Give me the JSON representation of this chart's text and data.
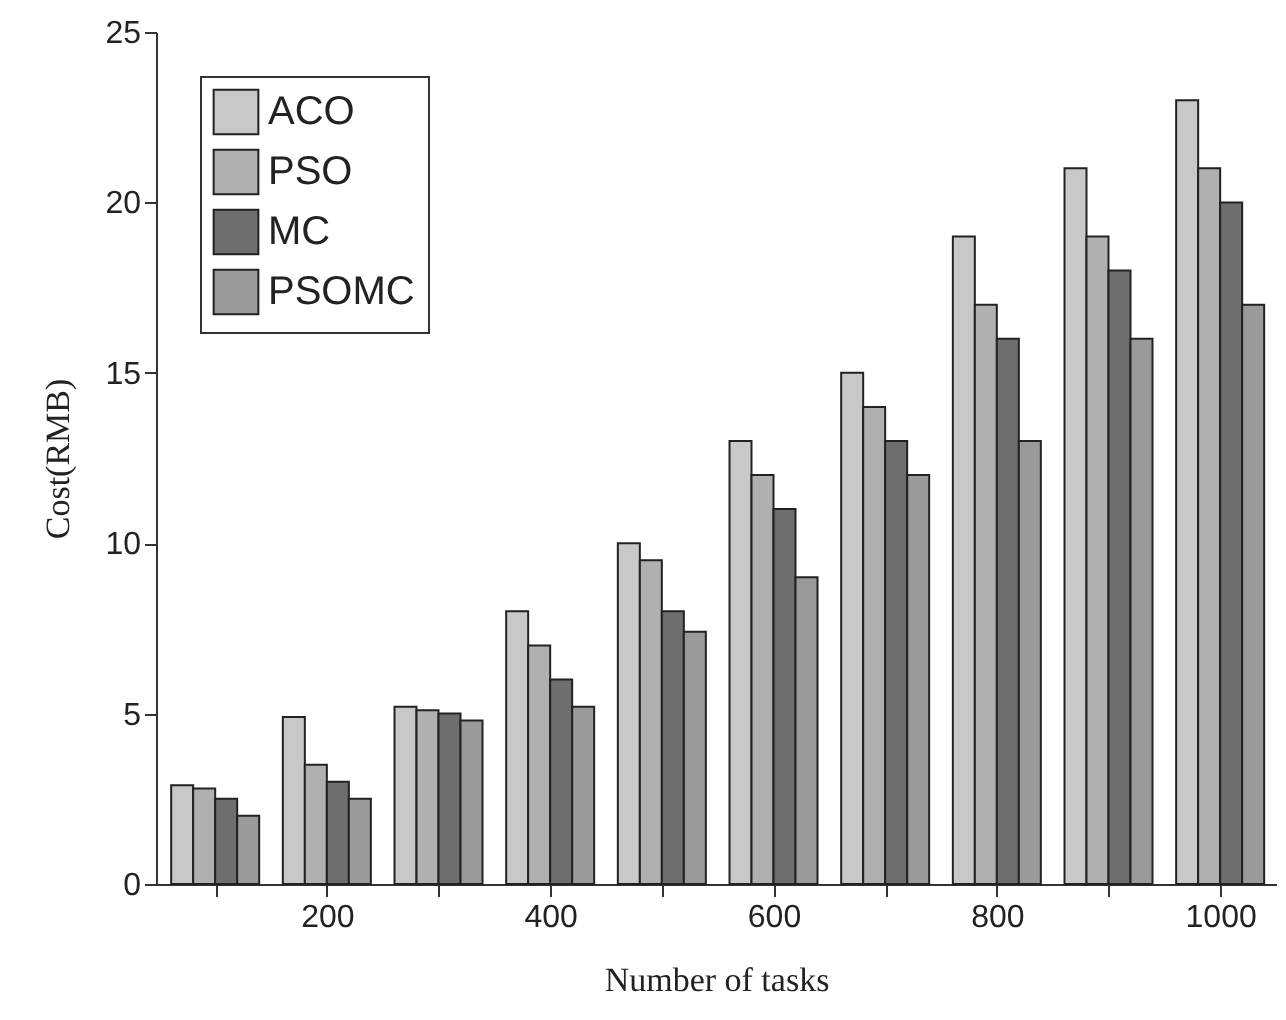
{
  "chart_data": {
    "type": "bar",
    "xlabel": "Number of tasks",
    "ylabel": "Cost(RMB)",
    "x": [
      100,
      200,
      300,
      400,
      500,
      600,
      700,
      800,
      900,
      1000
    ],
    "series": [
      {
        "name": "ACO",
        "color": "#c8c8c8",
        "values": [
          2.9,
          4.9,
          5.2,
          8,
          10,
          13,
          15,
          19,
          21,
          23
        ]
      },
      {
        "name": "PSO",
        "color": "#b0b0b0",
        "values": [
          2.8,
          3.5,
          5.1,
          7,
          9.5,
          12,
          14,
          17,
          19,
          21
        ]
      },
      {
        "name": "MC",
        "color": "#6e6e6e",
        "values": [
          2.5,
          3,
          5,
          6,
          8,
          11,
          13,
          16,
          18,
          20
        ]
      },
      {
        "name": "PSOMC",
        "color": "#9a9a9a",
        "values": [
          2,
          2.5,
          4.8,
          5.2,
          7.4,
          9,
          12,
          13,
          16,
          17
        ]
      }
    ],
    "xlim": [
      47,
      1050
    ],
    "xticks": [
      {
        "value": 100,
        "label": null
      },
      200,
      {
        "value": 300,
        "label": null
      },
      400,
      {
        "value": 500,
        "label": null
      },
      600,
      {
        "value": 700,
        "label": null
      },
      800,
      {
        "value": 900,
        "label": null
      },
      1000
    ],
    "ylim": [
      0,
      25
    ],
    "yticks": [
      0,
      5,
      10,
      15,
      20,
      25
    ],
    "grid": false,
    "legend": "top left"
  }
}
